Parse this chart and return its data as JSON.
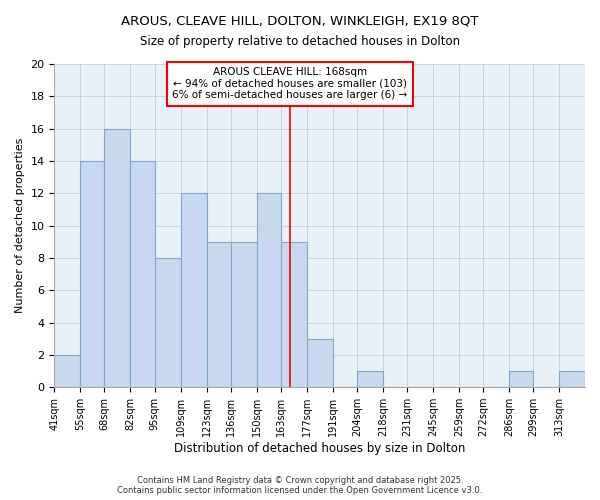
{
  "title_line1": "AROUS, CLEAVE HILL, DOLTON, WINKLEIGH, EX19 8QT",
  "title_line2": "Size of property relative to detached houses in Dolton",
  "xlabel": "Distribution of detached houses by size in Dolton",
  "ylabel": "Number of detached properties",
  "bin_labels": [
    "41sqm",
    "55sqm",
    "68sqm",
    "82sqm",
    "95sqm",
    "109sqm",
    "123sqm",
    "136sqm",
    "150sqm",
    "163sqm",
    "177sqm",
    "191sqm",
    "204sqm",
    "218sqm",
    "231sqm",
    "245sqm",
    "259sqm",
    "272sqm",
    "286sqm",
    "299sqm",
    "313sqm"
  ],
  "bin_edges": [
    41,
    55,
    68,
    82,
    95,
    109,
    123,
    136,
    150,
    163,
    177,
    191,
    204,
    218,
    231,
    245,
    259,
    272,
    286,
    299,
    313
  ],
  "counts": [
    2,
    14,
    16,
    14,
    8,
    12,
    9,
    9,
    12,
    9,
    3,
    0,
    1,
    0,
    0,
    0,
    0,
    0,
    1,
    0,
    1
  ],
  "bar_color": "#c8d8ee",
  "bar_edge_color": "#7aaacc",
  "grid_color": "#cccccc",
  "vline_x": 168,
  "vline_color": "red",
  "annotation_text": "AROUS CLEAVE HILL: 168sqm\n← 94% of detached houses are smaller (103)\n6% of semi-detached houses are larger (6) →",
  "ylim": [
    0,
    20
  ],
  "yticks": [
    0,
    2,
    4,
    6,
    8,
    10,
    12,
    14,
    16,
    18,
    20
  ],
  "footnote": "Contains HM Land Registry data © Crown copyright and database right 2025.\nContains public sector information licensed under the Open Government Licence v3.0.",
  "background_color": "#ffffff",
  "grid_bg_color": "#e8f0f8"
}
